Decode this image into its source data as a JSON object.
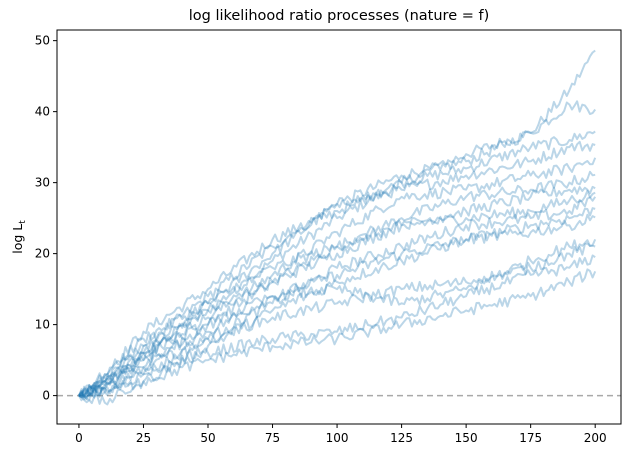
{
  "chart_data": {
    "type": "line",
    "title": "log likelihood ratio processes (nature = f)",
    "xlabel": "",
    "ylabel": "log L_t",
    "ylabel_parts": {
      "main": "log L",
      "sub": "t"
    },
    "xlim": [
      -8.5,
      210
    ],
    "ylim": [
      -4,
      51.5
    ],
    "xticks": [
      0,
      25,
      50,
      75,
      100,
      125,
      150,
      175,
      200
    ],
    "yticks": [
      0,
      10,
      20,
      30,
      40,
      50
    ],
    "grid": false,
    "legend": "none",
    "series_color": "#1f77b4",
    "series_alpha": 0.3,
    "reference_line": {
      "y": 0,
      "style": "dashed",
      "color": "#a9a9a9"
    },
    "series": [
      {
        "x": [
          0,
          10,
          25,
          50,
          75,
          100,
          125,
          150,
          175,
          190,
          200
        ],
        "values": [
          0,
          1.5,
          6,
          12,
          19,
          25,
          30,
          34,
          37,
          43,
          48.6
        ]
      },
      {
        "x": [
          0,
          10,
          25,
          50,
          75,
          100,
          125,
          150,
          175,
          190,
          200
        ],
        "values": [
          0,
          2,
          7,
          14,
          21,
          27,
          31,
          33,
          37,
          41,
          40.3
        ]
      },
      {
        "x": [
          0,
          10,
          25,
          50,
          75,
          100,
          125,
          150,
          175,
          190,
          200
        ],
        "values": [
          0,
          3,
          9,
          15,
          22,
          26,
          30,
          32,
          35,
          36,
          37.2
        ]
      },
      {
        "x": [
          0,
          10,
          25,
          50,
          75,
          100,
          125,
          150,
          175,
          190,
          200
        ],
        "values": [
          0,
          1,
          5,
          13,
          20,
          27,
          29,
          31,
          33,
          35,
          35.3
        ]
      },
      {
        "x": [
          0,
          10,
          25,
          50,
          75,
          100,
          125,
          150,
          175,
          190,
          200
        ],
        "values": [
          0,
          2,
          6,
          11,
          17,
          23,
          28,
          29,
          31,
          32,
          33.5
        ]
      },
      {
        "x": [
          0,
          10,
          25,
          50,
          75,
          100,
          125,
          150,
          175,
          190,
          200
        ],
        "values": [
          0,
          2.5,
          7,
          12,
          16,
          21,
          25,
          28,
          29,
          30,
          31.1
        ]
      },
      {
        "x": [
          0,
          10,
          25,
          50,
          75,
          100,
          125,
          150,
          175,
          190,
          200
        ],
        "values": [
          0,
          1,
          4,
          10,
          16,
          20,
          24,
          26,
          28,
          29,
          29.2
        ]
      },
      {
        "x": [
          0,
          10,
          25,
          50,
          75,
          100,
          125,
          150,
          175,
          190,
          200
        ],
        "values": [
          0,
          3,
          8,
          13,
          18,
          21,
          24,
          25,
          26,
          27.5,
          28.6
        ]
      },
      {
        "x": [
          0,
          10,
          25,
          50,
          75,
          100,
          125,
          150,
          175,
          190,
          200
        ],
        "values": [
          0,
          0.5,
          3,
          8,
          13,
          18,
          21,
          24,
          25,
          26,
          28.0
        ]
      },
      {
        "x": [
          0,
          10,
          25,
          50,
          75,
          100,
          125,
          150,
          175,
          190,
          200
        ],
        "values": [
          0,
          2,
          5,
          9,
          14,
          17,
          20,
          22,
          24,
          25,
          26.3
        ]
      },
      {
        "x": [
          0,
          10,
          25,
          50,
          75,
          100,
          125,
          150,
          175,
          190,
          200
        ],
        "values": [
          0,
          -1,
          2,
          7,
          12,
          16,
          19,
          22,
          23,
          24,
          25.1
        ]
      },
      {
        "x": [
          0,
          10,
          25,
          50,
          75,
          100,
          125,
          150,
          175,
          190,
          200
        ],
        "values": [
          0,
          1.5,
          4,
          8,
          11,
          13,
          15,
          16,
          18,
          20,
          21.0
        ]
      },
      {
        "x": [
          0,
          10,
          25,
          50,
          75,
          100,
          125,
          150,
          175,
          190,
          200
        ],
        "values": [
          0,
          1,
          3,
          6,
          8,
          9,
          11,
          14,
          17,
          18,
          19.5
        ]
      },
      {
        "x": [
          0,
          10,
          25,
          50,
          75,
          100,
          125,
          150,
          175,
          190,
          200
        ],
        "values": [
          0,
          0.5,
          2,
          5,
          7,
          8,
          10,
          12,
          14,
          16,
          17.5
        ]
      },
      {
        "x": [
          0,
          10,
          25,
          50,
          75,
          100,
          125,
          150,
          175,
          190,
          200
        ],
        "values": [
          0,
          2,
          6,
          10,
          14,
          15,
          13,
          15,
          19,
          21,
          22.0
        ]
      }
    ]
  }
}
